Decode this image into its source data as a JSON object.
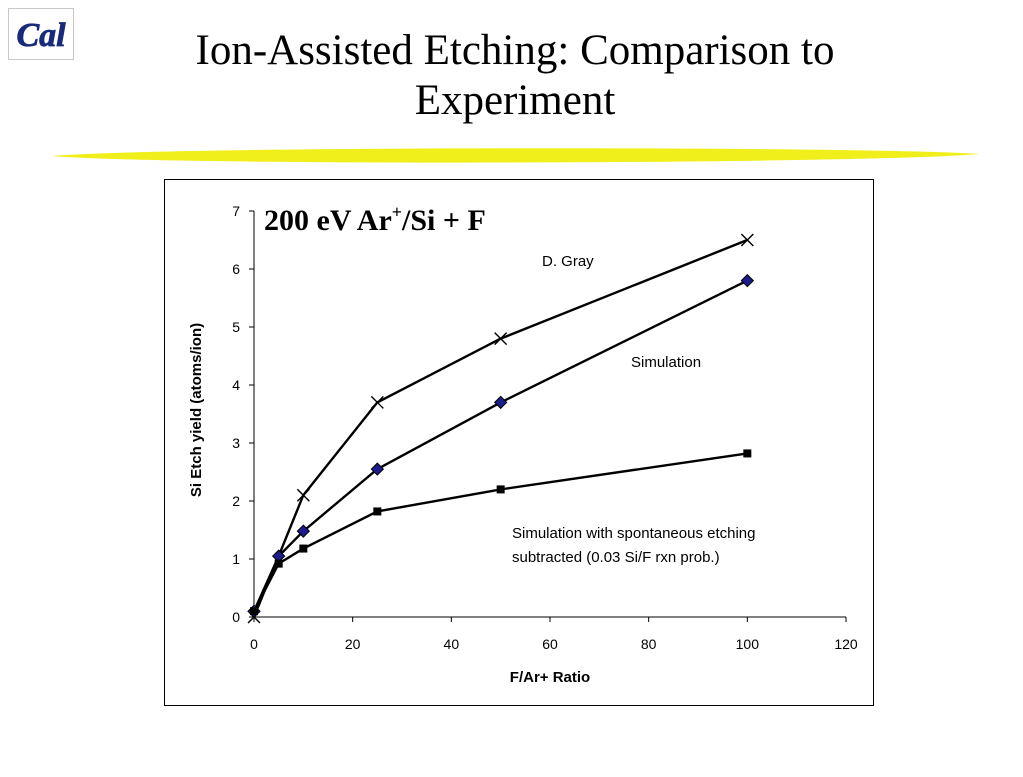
{
  "slide": {
    "title": "Ion-Assisted Etching: Comparison to Experiment"
  },
  "logo": {
    "text": "Cal",
    "color": "#1a2a7a"
  },
  "colors": {
    "underline": "#f0ef1c",
    "diamond": "#1c1c8c",
    "line": "#000000"
  },
  "chart_data": {
    "type": "line",
    "title_main": "200 eV Ar",
    "title_sup": "+",
    "title_rest": "/Si + F",
    "xlabel": "F/Ar+ Ratio",
    "ylabel": "Si Etch yield (atoms/ion)",
    "xlim": [
      0,
      120
    ],
    "ylim": [
      0,
      7
    ],
    "xticks": [
      0,
      20,
      40,
      60,
      80,
      100,
      120
    ],
    "yticks": [
      0,
      1,
      2,
      3,
      4,
      5,
      6,
      7
    ],
    "grid": false,
    "series": [
      {
        "name": "D. Gray",
        "marker": "x",
        "x": [
          0,
          10,
          25,
          50,
          100
        ],
        "y": [
          0,
          2.1,
          3.7,
          4.8,
          6.5
        ]
      },
      {
        "name": "Simulation",
        "marker": "diamond",
        "x": [
          0,
          5,
          10,
          25,
          50,
          100
        ],
        "y": [
          0.1,
          1.05,
          1.48,
          2.55,
          3.7,
          5.8
        ]
      },
      {
        "name": "Simulation with spontaneous etching subtracted (0.03 Si/F rxn prob.)",
        "marker": "square",
        "x": [
          0,
          5,
          10,
          25,
          50,
          100
        ],
        "y": [
          0.1,
          0.92,
          1.18,
          1.82,
          2.2,
          2.82
        ]
      }
    ],
    "annotations": {
      "gray": "D. Gray",
      "sim": "Simulation",
      "spont_line1": "Simulation with spontaneous etching",
      "spont_line2": "subtracted (0.03 Si/F rxn prob.)"
    }
  }
}
